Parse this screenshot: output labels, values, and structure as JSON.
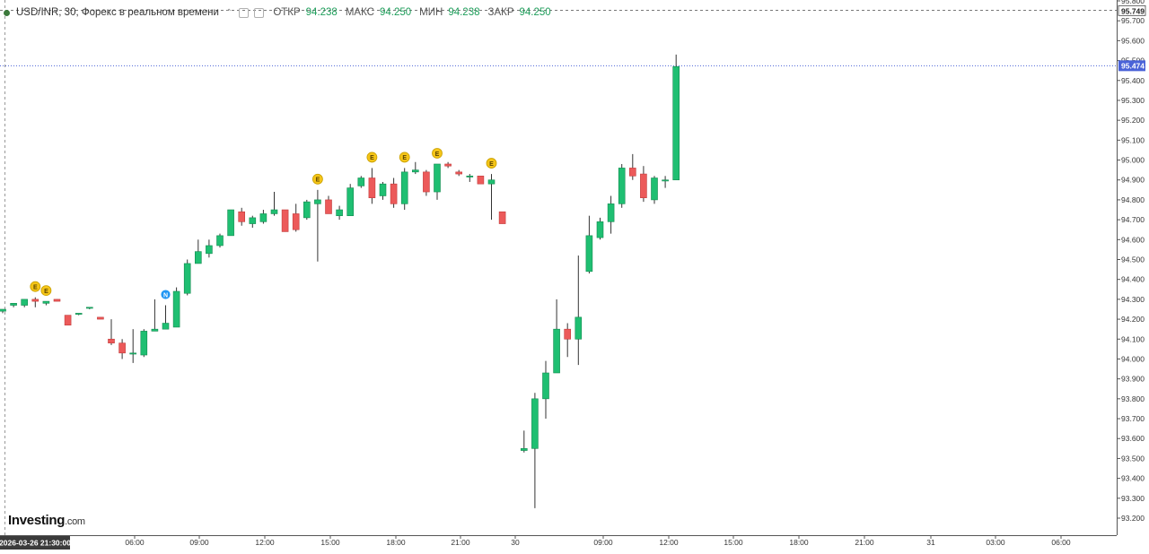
{
  "legend": {
    "symbol": "USD/INR, 30, Форекс в реальном времени",
    "open_key": "ОТКР",
    "open_val": "94.238",
    "high_key": "МАКС",
    "high_val": "94.250",
    "low_key": "МИН",
    "low_val": "94.238",
    "close_key": "ЗАКР",
    "close_val": "94.250"
  },
  "watermark": {
    "brand": "Investing",
    "domain": ".com"
  },
  "chart_data": {
    "type": "candlestick",
    "y_ticks": [
      "95.800",
      "95.700",
      "95.600",
      "95.500",
      "95.400",
      "95.300",
      "95.200",
      "95.100",
      "95.000",
      "94.900",
      "94.800",
      "94.700",
      "94.600",
      "94.500",
      "94.400",
      "94.300",
      "94.200",
      "94.100",
      "94.000",
      "93.900",
      "93.800",
      "93.700",
      "93.600",
      "93.500",
      "93.400",
      "93.300",
      "93.200"
    ],
    "ylim": [
      93.15,
      95.82
    ],
    "x_ticks": [
      "06:00",
      "09:00",
      "12:00",
      "15:00",
      "18:00",
      "21:00",
      "30",
      "09:00",
      "12:00",
      "15:00",
      "18:00",
      "21:00",
      "31",
      "03:00",
      "06:00"
    ],
    "crosshair_date_label": "2026-03-26 21:30:00",
    "price_marker_top": "95.749",
    "price_marker_current": "95.474",
    "candles": [
      {
        "o": 94.24,
        "h": 94.25,
        "l": 94.23,
        "c": 94.25
      },
      {
        "o": 94.27,
        "h": 94.28,
        "l": 94.26,
        "c": 94.28
      },
      {
        "o": 94.27,
        "h": 94.3,
        "l": 94.26,
        "c": 94.3
      },
      {
        "o": 94.3,
        "h": 94.31,
        "l": 94.26,
        "c": 94.29
      },
      {
        "o": 94.28,
        "h": 94.29,
        "l": 94.27,
        "c": 94.29
      },
      {
        "o": 94.3,
        "h": 94.3,
        "l": 94.29,
        "c": 94.29
      },
      {
        "o": 94.22,
        "h": 94.22,
        "l": 94.17,
        "c": 94.17
      },
      {
        "o": 94.23,
        "h": 94.23,
        "l": 94.22,
        "c": 94.23
      },
      {
        "o": 94.26,
        "h": 94.26,
        "l": 94.25,
        "c": 94.26
      },
      {
        "o": 94.21,
        "h": 94.21,
        "l": 94.2,
        "c": 94.2
      },
      {
        "o": 94.1,
        "h": 94.2,
        "l": 94.07,
        "c": 94.08
      },
      {
        "o": 94.08,
        "h": 94.1,
        "l": 94.0,
        "c": 94.03
      },
      {
        "o": 94.03,
        "h": 94.15,
        "l": 93.98,
        "c": 94.03
      },
      {
        "o": 94.02,
        "h": 94.15,
        "l": 94.01,
        "c": 94.14
      },
      {
        "o": 94.14,
        "h": 94.3,
        "l": 94.14,
        "c": 94.15
      },
      {
        "o": 94.15,
        "h": 94.27,
        "l": 94.15,
        "c": 94.18
      },
      {
        "o": 94.16,
        "h": 94.36,
        "l": 94.16,
        "c": 94.34
      },
      {
        "o": 94.33,
        "h": 94.5,
        "l": 94.32,
        "c": 94.48
      },
      {
        "o": 94.48,
        "h": 94.6,
        "l": 94.48,
        "c": 94.54
      },
      {
        "o": 94.53,
        "h": 94.6,
        "l": 94.51,
        "c": 94.57
      },
      {
        "o": 94.57,
        "h": 94.63,
        "l": 94.56,
        "c": 94.62
      },
      {
        "o": 94.62,
        "h": 94.75,
        "l": 94.62,
        "c": 94.75
      },
      {
        "o": 94.74,
        "h": 94.76,
        "l": 94.67,
        "c": 94.69
      },
      {
        "o": 94.68,
        "h": 94.72,
        "l": 94.66,
        "c": 94.71
      },
      {
        "o": 94.69,
        "h": 94.75,
        "l": 94.68,
        "c": 94.73
      },
      {
        "o": 94.73,
        "h": 94.84,
        "l": 94.72,
        "c": 94.75
      },
      {
        "o": 94.75,
        "h": 94.75,
        "l": 94.64,
        "c": 94.64
      },
      {
        "o": 94.73,
        "h": 94.78,
        "l": 94.64,
        "c": 94.65
      },
      {
        "o": 94.71,
        "h": 94.8,
        "l": 94.7,
        "c": 94.79
      },
      {
        "o": 94.78,
        "h": 94.85,
        "l": 94.49,
        "c": 94.8
      },
      {
        "o": 94.8,
        "h": 94.82,
        "l": 94.73,
        "c": 94.73
      },
      {
        "o": 94.72,
        "h": 94.77,
        "l": 94.7,
        "c": 94.75
      },
      {
        "o": 94.72,
        "h": 94.88,
        "l": 94.72,
        "c": 94.86
      },
      {
        "o": 94.87,
        "h": 94.92,
        "l": 94.86,
        "c": 94.91
      },
      {
        "o": 94.91,
        "h": 94.96,
        "l": 94.78,
        "c": 94.81
      },
      {
        "o": 94.82,
        "h": 94.89,
        "l": 94.8,
        "c": 94.88
      },
      {
        "o": 94.88,
        "h": 94.91,
        "l": 94.76,
        "c": 94.78
      },
      {
        "o": 94.78,
        "h": 94.96,
        "l": 94.75,
        "c": 94.94
      },
      {
        "o": 94.94,
        "h": 94.99,
        "l": 94.93,
        "c": 94.95
      },
      {
        "o": 94.94,
        "h": 94.95,
        "l": 94.82,
        "c": 94.84
      },
      {
        "o": 94.84,
        "h": 94.98,
        "l": 94.8,
        "c": 94.98
      },
      {
        "o": 94.98,
        "h": 94.99,
        "l": 94.96,
        "c": 94.97
      },
      {
        "o": 94.94,
        "h": 94.95,
        "l": 94.92,
        "c": 94.93
      },
      {
        "o": 94.92,
        "h": 94.93,
        "l": 94.89,
        "c": 94.92
      },
      {
        "o": 94.92,
        "h": 94.92,
        "l": 94.88,
        "c": 94.88
      },
      {
        "o": 94.88,
        "h": 94.93,
        "l": 94.7,
        "c": 94.9
      },
      {
        "o": 94.74,
        "h": 94.74,
        "l": 94.68,
        "c": 94.68
      },
      {
        "o": 93.54,
        "h": 93.64,
        "l": 93.53,
        "c": 93.55
      },
      {
        "o": 93.55,
        "h": 93.83,
        "l": 93.25,
        "c": 93.8
      },
      {
        "o": 93.8,
        "h": 93.99,
        "l": 93.7,
        "c": 93.93
      },
      {
        "o": 93.93,
        "h": 94.3,
        "l": 93.93,
        "c": 94.15
      },
      {
        "o": 94.15,
        "h": 94.18,
        "l": 94.01,
        "c": 94.1
      },
      {
        "o": 94.1,
        "h": 94.52,
        "l": 93.97,
        "c": 94.21
      },
      {
        "o": 94.44,
        "h": 94.72,
        "l": 94.43,
        "c": 94.62
      },
      {
        "o": 94.61,
        "h": 94.71,
        "l": 94.6,
        "c": 94.69
      },
      {
        "o": 94.69,
        "h": 94.82,
        "l": 94.63,
        "c": 94.78
      },
      {
        "o": 94.78,
        "h": 94.98,
        "l": 94.76,
        "c": 94.96
      },
      {
        "o": 94.96,
        "h": 95.03,
        "l": 94.9,
        "c": 94.92
      },
      {
        "o": 94.93,
        "h": 94.97,
        "l": 94.79,
        "c": 94.81
      },
      {
        "o": 94.8,
        "h": 94.92,
        "l": 94.78,
        "c": 94.91
      },
      {
        "o": 94.9,
        "h": 94.92,
        "l": 94.86,
        "c": 94.9
      },
      {
        "o": 94.9,
        "h": 95.53,
        "l": 94.9,
        "c": 95.47
      }
    ],
    "events": [
      {
        "candle": 3,
        "label": "E",
        "kind": "earnings"
      },
      {
        "candle": 4,
        "label": "E",
        "kind": "earnings"
      },
      {
        "candle": 15,
        "label": "N",
        "kind": "news"
      },
      {
        "candle": 29,
        "label": "E",
        "kind": "earnings"
      },
      {
        "candle": 34,
        "label": "E",
        "kind": "earnings"
      },
      {
        "candle": 37,
        "label": "E",
        "kind": "earnings"
      },
      {
        "candle": 40,
        "label": "E",
        "kind": "earnings"
      },
      {
        "candle": 45,
        "label": "E",
        "kind": "earnings"
      }
    ],
    "colors": {
      "up": "#1fbf72",
      "down": "#ec5a5a",
      "up_border": "#138a4f",
      "down_border": "#c23b3b",
      "price_marker": "#4a63d8",
      "event_e": "#f5c518",
      "event_n": "#2196f3"
    }
  }
}
